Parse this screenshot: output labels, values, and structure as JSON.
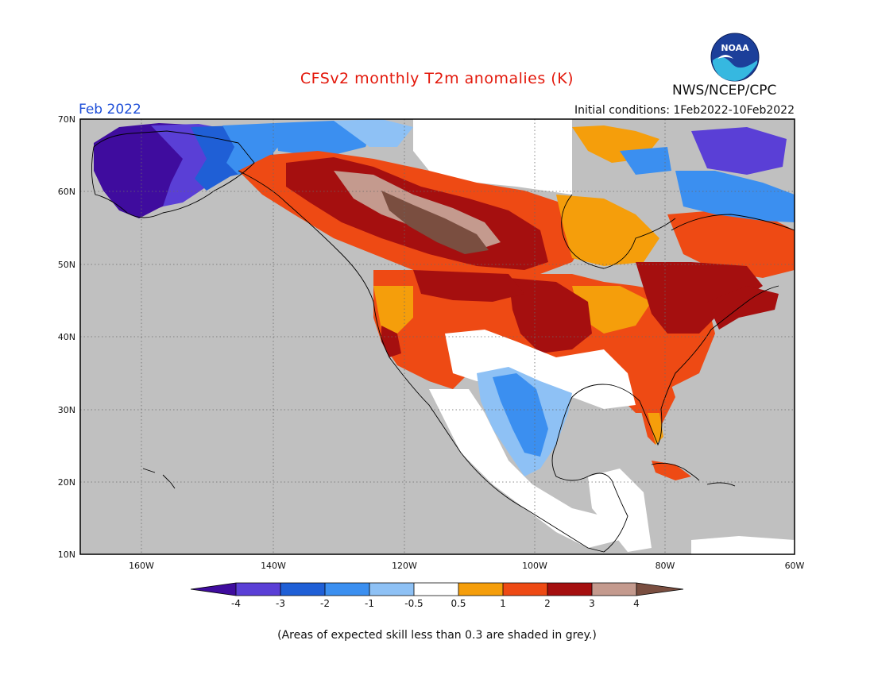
{
  "title": "CFSv2 monthly T2m anomalies (K)",
  "month_label": "Feb 2022",
  "initial_conditions": "Initial conditions: 1Feb2022-10Feb2022",
  "agency": "NWS/NCEP/CPC",
  "logo_text": "NOAA",
  "footnote": "(Areas of expected skill less than 0.3 are shaded in grey.)",
  "map": {
    "lat_labels": [
      "70N",
      "60N",
      "50N",
      "40N",
      "30N",
      "20N",
      "10N"
    ],
    "lon_labels": [
      "160W",
      "140W",
      "120W",
      "100W",
      "80W",
      "60W"
    ],
    "colors": {
      "ocean_low_skill": "#c0c0c0",
      "neutral": "#ffffff",
      "frame": "#000000"
    }
  },
  "legend": {
    "labels": [
      "-4",
      "-3",
      "-2",
      "-1",
      "-0.5",
      "0.5",
      "1",
      "2",
      "3",
      "4"
    ],
    "bins": [
      {
        "color": "#3f0c9e"
      },
      {
        "color": "#5a3fd6"
      },
      {
        "color": "#1f5fd6"
      },
      {
        "color": "#3b8ff0"
      },
      {
        "color": "#8ec1f5"
      },
      {
        "color": "#ffffff"
      },
      {
        "color": "#f59e0b"
      },
      {
        "color": "#ee4a14"
      },
      {
        "color": "#a50f0f"
      },
      {
        "color": "#c49a8e"
      },
      {
        "color": "#7a4e40"
      }
    ]
  }
}
